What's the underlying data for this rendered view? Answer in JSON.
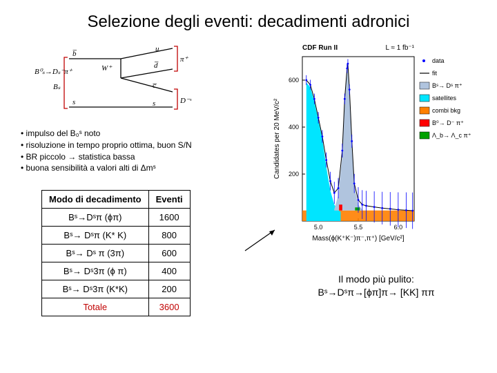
{
  "title": "Selezione degli eventi: decadimenti adronici",
  "feynman": {
    "labels": {
      "Bs0": "B₀ˢ → D⁻ˢ π⁺",
      "bbar": "b̅",
      "s": "s",
      "W": "W⁺",
      "u": "u",
      "dbar": "d̅",
      "cbar": "c̅",
      "s2": "s",
      "pi": "π⁺",
      "Ds": "D⁻ˢ"
    },
    "colors": {
      "line": "#000000",
      "bracket": "#c00000"
    }
  },
  "bullets": [
    "impulso del B₀ˢ noto",
    "risoluzione in tempo proprio ottima, buon S/N",
    "BR piccolo → statistica bassa",
    "buona sensibilità a valori alti di Δmˢ"
  ],
  "table": {
    "headers": [
      "Modo di decadimento",
      "Eventi"
    ],
    "rows": [
      [
        "Bˢ→Dˢπ (ϕπ)",
        "1600"
      ],
      [
        "Bˢ→ Dˢπ (K* K)",
        "800"
      ],
      [
        "Bˢ→ Dˢ π (3π)",
        "600"
      ],
      [
        "Bˢ→ Dˢ3π (ϕ π)",
        "400"
      ],
      [
        "Bˢ→ Dˢ3π (K*K)",
        "200"
      ],
      [
        "Totale",
        "3600"
      ]
    ]
  },
  "plot": {
    "header_left": "CDF Run II",
    "header_right": "L ≈ 1 fb⁻¹",
    "ylabel": "Candidates per 20 MeV/c²",
    "xlabel": "Mass(ϕ(K⁺K⁻)π⁻,π⁺)  [GeV/c²]",
    "legend": [
      {
        "label": "data",
        "type": "marker",
        "color": "#0000ff"
      },
      {
        "label": "fit",
        "type": "line",
        "color": "#000000"
      },
      {
        "label": "Bˢ→ Dˢ π⁺",
        "type": "fill",
        "color": "#b0c4de"
      },
      {
        "label": "satellites",
        "type": "fill",
        "color": "#00e5ff"
      },
      {
        "label": "combi bkg",
        "type": "fill",
        "color": "#ff8000"
      },
      {
        "label": "B⁰→ D⁻ π⁺",
        "type": "fill",
        "color": "#ff0000"
      },
      {
        "label": "Λ_b→ Λ_c π⁺",
        "type": "fill",
        "color": "#00a000"
      }
    ],
    "xlim": [
      4.8,
      6.2
    ],
    "xticks": [
      5.0,
      5.5,
      6.0
    ],
    "ylim": [
      0,
      700
    ],
    "yticks": [
      200,
      400,
      600
    ],
    "background_color": "#ffffff",
    "grid_color": "#000000",
    "peak_x": 5.37,
    "data_points": [
      [
        4.85,
        600
      ],
      [
        4.9,
        580
      ],
      [
        4.95,
        520
      ],
      [
        5.0,
        440
      ],
      [
        5.05,
        360
      ],
      [
        5.1,
        260
      ],
      [
        5.15,
        170
      ],
      [
        5.2,
        120
      ],
      [
        5.25,
        140
      ],
      [
        5.3,
        300
      ],
      [
        5.33,
        520
      ],
      [
        5.36,
        650
      ],
      [
        5.37,
        670
      ],
      [
        5.39,
        560
      ],
      [
        5.42,
        340
      ],
      [
        5.45,
        160
      ],
      [
        5.5,
        90
      ],
      [
        5.55,
        70
      ],
      [
        5.6,
        65
      ],
      [
        5.7,
        60
      ],
      [
        5.8,
        55
      ],
      [
        5.9,
        52
      ],
      [
        6.0,
        48
      ],
      [
        6.1,
        46
      ],
      [
        6.18,
        44
      ]
    ],
    "satellite_fill": [
      [
        4.85,
        590
      ],
      [
        4.9,
        570
      ],
      [
        4.95,
        510
      ],
      [
        5.0,
        430
      ],
      [
        5.05,
        350
      ],
      [
        5.1,
        230
      ],
      [
        5.15,
        130
      ],
      [
        5.2,
        70
      ],
      [
        5.25,
        45
      ],
      [
        5.28,
        40
      ]
    ],
    "bkg_level": 45,
    "signal_fill": [
      [
        5.2,
        50
      ],
      [
        5.25,
        110
      ],
      [
        5.3,
        280
      ],
      [
        5.33,
        510
      ],
      [
        5.36,
        640
      ],
      [
        5.37,
        665
      ],
      [
        5.39,
        555
      ],
      [
        5.42,
        330
      ],
      [
        5.45,
        150
      ],
      [
        5.5,
        70
      ],
      [
        5.55,
        48
      ]
    ]
  },
  "caption": {
    "line1": "Il modo più pulito:",
    "line2": "Bˢ→Dˢπ→[ϕπ]π→ [KK] ππ"
  }
}
